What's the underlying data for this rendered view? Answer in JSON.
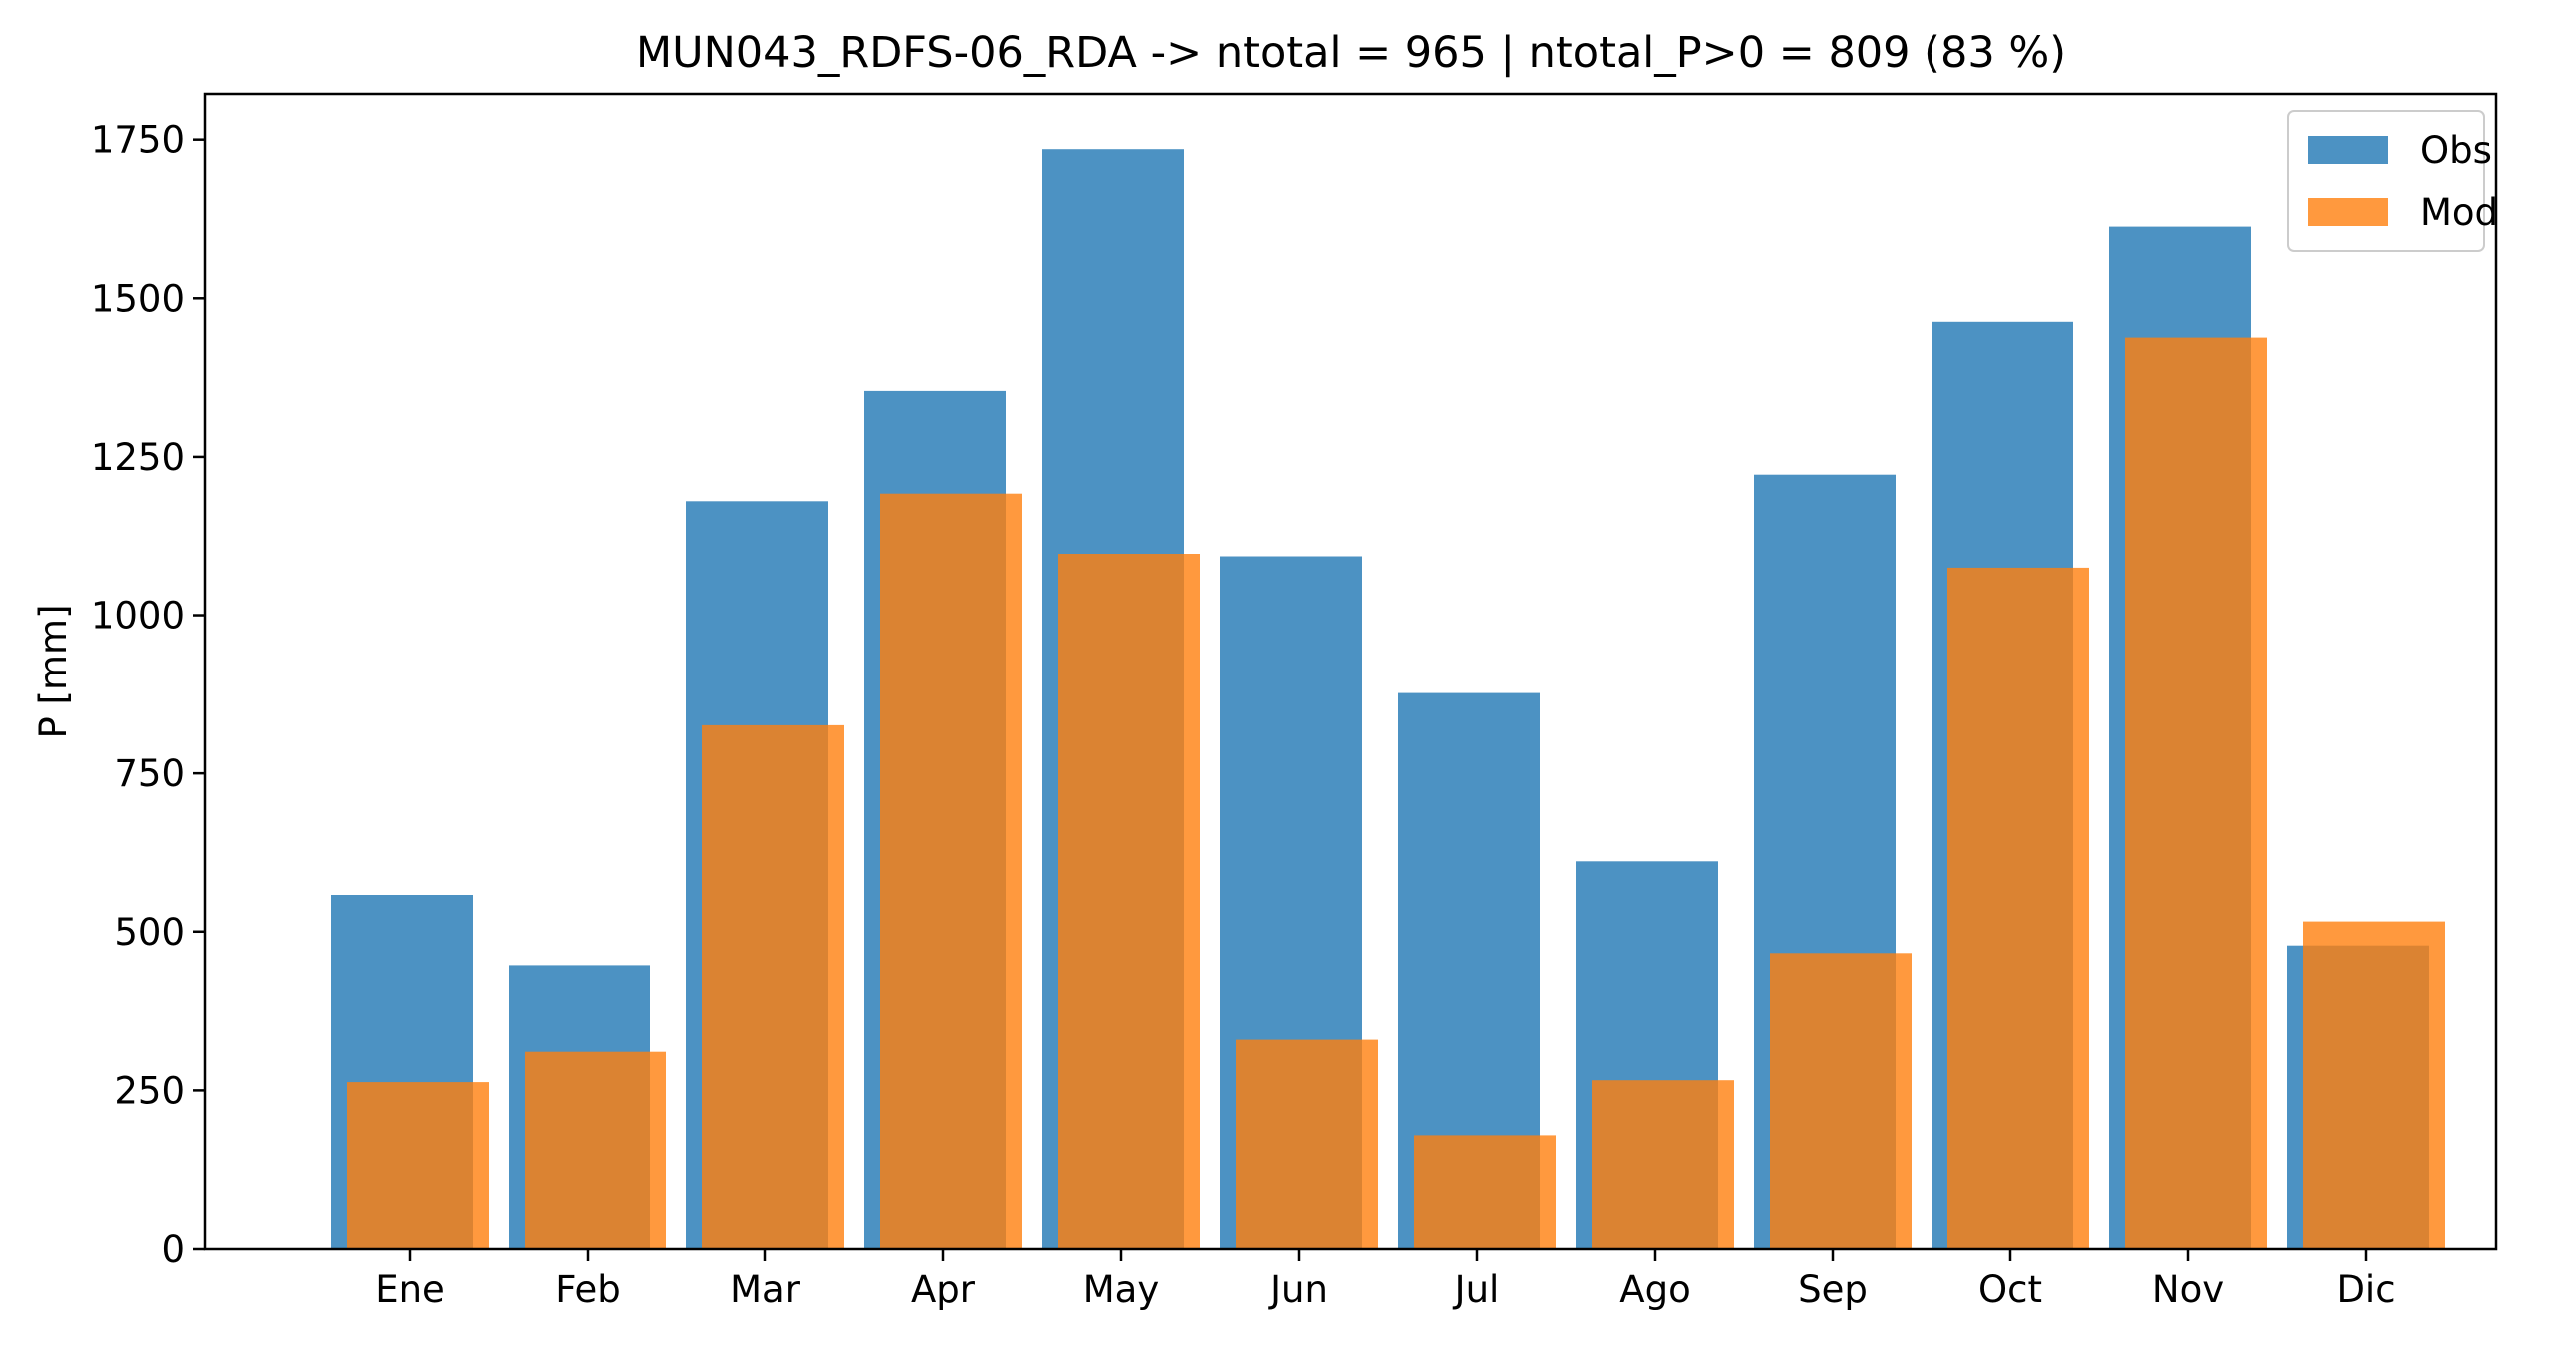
{
  "chart_data": {
    "type": "bar",
    "title": "MUN043_RDFS-06_RDA -> ntotal = 965 | ntotal_P>0 = 809 (83 %)",
    "xlabel": "",
    "ylabel": "P [mm]",
    "categories": [
      "Ene",
      "Feb",
      "Mar",
      "Apr",
      "May",
      "Jun",
      "Jul",
      "Ago",
      "Sep",
      "Oct",
      "Nov",
      "Dic"
    ],
    "series": [
      {
        "name": "Obs",
        "color": "#1f77b4",
        "values": [
          558,
          447,
          1180,
          1354,
          1735,
          1093,
          877,
          611,
          1222,
          1463,
          1613,
          478
        ]
      },
      {
        "name": "Mod",
        "color": "#ff7f0e",
        "values": [
          263,
          311,
          826,
          1192,
          1097,
          330,
          179,
          266,
          466,
          1075,
          1438,
          516
        ]
      }
    ],
    "ylim": [
      0,
      1822
    ],
    "yticks": [
      0,
      250,
      500,
      750,
      1000,
      1250,
      1500,
      1750
    ],
    "grid": false,
    "legend": "upper right"
  }
}
